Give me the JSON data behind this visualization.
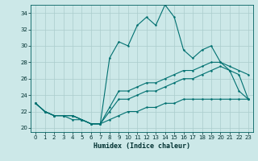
{
  "xlabel": "Humidex (Indice chaleur)",
  "background_color": "#cce8e8",
  "grid_color": "#aacccc",
  "line_color": "#007070",
  "xlim": [
    -0.5,
    23.5
  ],
  "ylim": [
    19.5,
    35.0
  ],
  "yticks": [
    20,
    22,
    24,
    26,
    28,
    30,
    32,
    34
  ],
  "xticks": [
    0,
    1,
    2,
    3,
    4,
    5,
    6,
    7,
    8,
    9,
    10,
    11,
    12,
    13,
    14,
    15,
    16,
    17,
    18,
    19,
    20,
    21,
    22,
    23
  ],
  "line1_x": [
    0,
    1,
    2,
    3,
    4,
    5,
    6,
    7,
    8,
    9,
    10,
    11,
    12,
    13,
    14,
    15,
    16,
    17,
    18,
    19,
    20,
    21,
    22,
    23
  ],
  "line1_y": [
    23,
    22,
    21.5,
    21.5,
    21.5,
    21,
    20.5,
    20.5,
    28.5,
    30.5,
    30,
    32.5,
    33.5,
    32.5,
    35,
    33.5,
    29.5,
    28.5,
    29.5,
    30,
    28,
    27,
    24.5,
    23.5
  ],
  "line2_x": [
    0,
    1,
    2,
    3,
    4,
    5,
    6,
    7,
    8,
    9,
    10,
    11,
    12,
    13,
    14,
    15,
    16,
    17,
    18,
    19,
    20,
    21,
    22,
    23
  ],
  "line2_y": [
    23,
    22,
    21.5,
    21.5,
    21.5,
    21,
    20.5,
    20.5,
    22.5,
    24.5,
    24.5,
    25,
    25.5,
    25.5,
    26,
    26.5,
    27,
    27,
    27.5,
    28,
    28,
    27.5,
    27,
    26.5
  ],
  "line3_x": [
    0,
    1,
    2,
    3,
    4,
    5,
    6,
    7,
    8,
    9,
    10,
    11,
    12,
    13,
    14,
    15,
    16,
    17,
    18,
    19,
    20,
    21,
    22,
    23
  ],
  "line3_y": [
    23,
    22,
    21.5,
    21.5,
    21.5,
    21,
    20.5,
    20.5,
    22,
    23.5,
    23.5,
    24,
    24.5,
    24.5,
    25,
    25.5,
    26,
    26,
    26.5,
    27,
    27.5,
    27,
    26.5,
    23.5
  ],
  "line4_x": [
    0,
    1,
    2,
    3,
    4,
    5,
    6,
    7,
    8,
    9,
    10,
    11,
    12,
    13,
    14,
    15,
    16,
    17,
    18,
    19,
    20,
    21,
    22,
    23
  ],
  "line4_y": [
    23,
    22,
    21.5,
    21.5,
    21,
    21,
    20.5,
    20.5,
    21,
    21.5,
    22,
    22,
    22.5,
    22.5,
    23,
    23,
    23.5,
    23.5,
    23.5,
    23.5,
    23.5,
    23.5,
    23.5,
    23.5
  ]
}
